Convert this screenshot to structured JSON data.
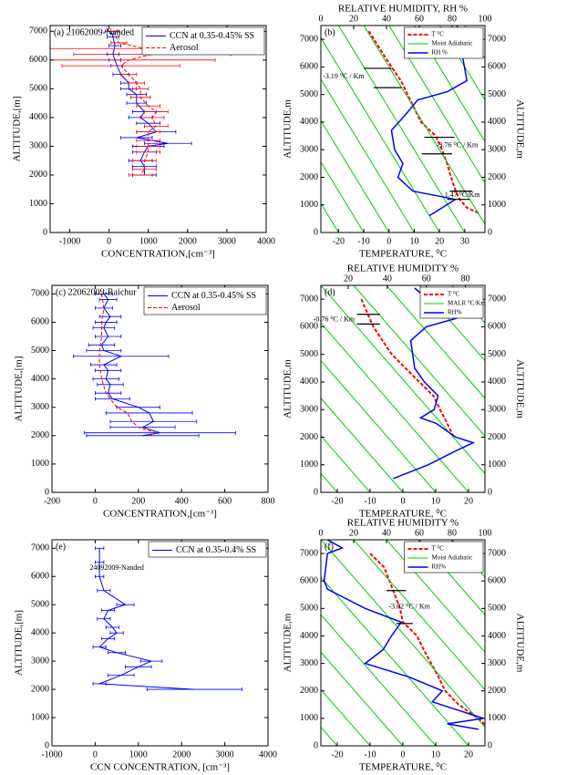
{
  "chart_data": [
    {
      "type": "line",
      "panel_label": "(a) 21062009-Nanded",
      "xlabel": "CONCENTRATION,[cm⁻³]",
      "ylabel": "ALTITUDE,[m]",
      "xlim": [
        -1500,
        4000
      ],
      "ylim": [
        0,
        7200
      ],
      "xticks": [
        -1000,
        0,
        1000,
        2000,
        3000,
        4000
      ],
      "yticks": [
        0,
        1000,
        2000,
        3000,
        4000,
        5000,
        6000,
        7000
      ],
      "legend": "upper right",
      "series": [
        {
          "name": "CCN at 0.35-0.45% SS",
          "color": "#0000ff",
          "linestyle": "solid",
          "values": [
            7000,
            6800,
            6500,
            6200,
            6000,
            5800,
            5500,
            5200,
            5000,
            4800,
            4500,
            4200,
            4000,
            3800,
            3500,
            3300,
            3100,
            3000,
            2800,
            2500,
            2300,
            2000
          ],
          "x": [
            50,
            100,
            150,
            100,
            150,
            200,
            300,
            500,
            500,
            700,
            700,
            900,
            800,
            1000,
            1200,
            700,
            1500,
            1000,
            900,
            800,
            900,
            900
          ],
          "errors": [
            150,
            150,
            150,
            150,
            150,
            150,
            200,
            200,
            200,
            250,
            250,
            300,
            300,
            300,
            500,
            400,
            600,
            400,
            300,
            300,
            300,
            300
          ]
        },
        {
          "name": "Aerosol",
          "color": "#ff0000",
          "linestyle": "dashed",
          "values": [
            7000,
            6600,
            6400,
            6200,
            6000,
            5800,
            5500,
            5200,
            5000,
            4700,
            4400,
            4200,
            4000,
            3700,
            3500,
            3200,
            3000,
            2800,
            2500,
            2200,
            2000
          ],
          "x": [
            100,
            250,
            900,
            1100,
            500,
            300,
            500,
            700,
            800,
            800,
            1000,
            1200,
            1100,
            1200,
            1000,
            1000,
            1000,
            1000,
            900,
            900,
            800
          ],
          "errors": [
            150,
            200,
            2400,
            2000,
            2200,
            1500,
            200,
            200,
            200,
            250,
            300,
            300,
            300,
            300,
            300,
            300,
            300,
            300,
            300,
            300,
            300
          ]
        }
      ],
      "annotations": [],
      "segments": []
    },
    {
      "type": "line",
      "panel_label": "(b)",
      "xlabel": "TEMPERATURE, ⁰C",
      "ylabel": "ALTITUDE,m",
      "y2label": "ALTITUDE,m",
      "x2label": "RELATIVE HUMIDITY, RH %",
      "xlim": [
        -27,
        38
      ],
      "ylim": [
        0,
        7500
      ],
      "xticks": [
        -20,
        -10,
        0,
        10,
        20,
        30
      ],
      "yticks": [
        0,
        1000,
        2000,
        3000,
        4000,
        5000,
        6000,
        7000
      ],
      "x2lim": [
        0,
        100
      ],
      "x2ticks": [
        0,
        20,
        40,
        60,
        80,
        100
      ],
      "y_right": true,
      "legend": "upper right",
      "series": [
        {
          "name": "T ⁰C",
          "color": "#ff0000",
          "linestyle": "dashed",
          "width": 2,
          "values": [
            7300,
            6500,
            6000,
            5500,
            4500,
            4000,
            3500,
            3000,
            2500,
            2000,
            1500,
            1200,
            900,
            700
          ],
          "x": [
            -8,
            -2.5,
            1,
            4.7,
            10,
            12.7,
            18.5,
            21,
            23,
            24.6,
            26.4,
            28,
            30.8,
            35.5
          ]
        },
        {
          "name": "Moist Adiabatic",
          "color": "#00cc00",
          "linestyle": "solid",
          "width": 1,
          "values": [
            0,
            7500,
            null,
            0,
            7500,
            null,
            0,
            7500,
            null,
            0,
            7500,
            null,
            0,
            7500,
            null,
            0,
            7500,
            null,
            0,
            7500,
            null,
            0,
            7500,
            null,
            0,
            7500,
            null,
            0,
            7500,
            null,
            0,
            7500
          ],
          "x": [
            -20,
            -70,
            null,
            -10,
            -60,
            null,
            0,
            -50,
            null,
            10,
            -40,
            null,
            20,
            -30,
            null,
            30,
            -20,
            null,
            40,
            -10,
            null,
            50,
            0,
            null,
            60,
            10,
            null,
            70,
            20,
            null,
            80,
            30
          ]
        },
        {
          "name": "RH %",
          "color": "#0000ff",
          "linestyle": "solid",
          "width": 1.5,
          "axis": "x2",
          "values": [
            7500,
            5500,
            5100,
            4800,
            4300,
            3700,
            3000,
            2500,
            2000,
            1500,
            1200,
            600
          ],
          "x": [
            83,
            89,
            77,
            59,
            52,
            43,
            45,
            50,
            47,
            56,
            82,
            66
          ]
        }
      ],
      "annotations": [
        {
          "text": "-3.19 ⁰C / Km",
          "x": -18,
          "y": 5650
        },
        {
          "text": "-3.76 ⁰C / Km",
          "x": 27,
          "y": 3150
        },
        {
          "text": "1.47 ⁰C/Km",
          "x": 29,
          "y": 1350
        }
      ],
      "segments": [
        {
          "x": [
            -10,
            1
          ],
          "y": 5950
        },
        {
          "x": [
            -6,
            5
          ],
          "y": 5250
        },
        {
          "x": [
            14,
            26
          ],
          "y": 3450
        },
        {
          "x": [
            13,
            25
          ],
          "y": 2850
        },
        {
          "x": [
            24,
            33
          ],
          "y": 1500
        },
        {
          "x": [
            23,
            32
          ],
          "y": 1200
        }
      ]
    },
    {
      "type": "line",
      "panel_label": "(c) 22062009-Raichur",
      "xlabel": "CONCENTRATION,[cm⁻³]",
      "ylabel": "ALTITUDE,[m]",
      "xlim": [
        -200,
        800
      ],
      "ylim": [
        0,
        7300
      ],
      "xticks": [
        -200,
        0,
        200,
        400,
        600,
        800
      ],
      "yticks": [
        0,
        1000,
        2000,
        3000,
        4000,
        5000,
        6000,
        7000
      ],
      "legend": "upper right",
      "series": [
        {
          "name": "CCN at 0.35-0.45% SS",
          "color": "#0000ff",
          "linestyle": "solid",
          "values": [
            7000,
            6800,
            6500,
            6200,
            6000,
            5800,
            5500,
            5200,
            5000,
            4800,
            4500,
            4300,
            4000,
            3800,
            3500,
            3300,
            3000,
            2800,
            2500,
            2300,
            2100,
            2000
          ],
          "x": [
            40,
            60,
            40,
            70,
            50,
            40,
            60,
            30,
            40,
            120,
            40,
            60,
            50,
            70,
            60,
            80,
            200,
            250,
            270,
            220,
            300,
            220
          ],
          "errors": [
            40,
            40,
            40,
            50,
            50,
            50,
            60,
            60,
            80,
            220,
            60,
            60,
            60,
            60,
            60,
            80,
            100,
            200,
            200,
            150,
            350,
            260
          ]
        },
        {
          "name": "Aerosol",
          "color": "#ff0000",
          "linestyle": "dashed",
          "values": [
            7000,
            6500,
            6000,
            5500,
            5000,
            4500,
            4000,
            3500,
            3000,
            2800,
            2500,
            2300,
            2100,
            2000
          ],
          "x": [
            30,
            40,
            30,
            30,
            20,
            20,
            30,
            50,
            100,
            150,
            170,
            200,
            280,
            250
          ]
        }
      ],
      "annotations": [],
      "segments": []
    },
    {
      "type": "line",
      "panel_label": "(d)",
      "xlabel": "TEMPERATURE, ⁰C",
      "ylabel": "ALTITUDE,m",
      "y2label": "ALTITUDE,m",
      "x2label": "RELATIVE HUMIDITY %",
      "xlim": [
        -25,
        25
      ],
      "ylim": [
        0,
        7500
      ],
      "xticks": [
        -20,
        -10,
        0,
        10,
        20
      ],
      "yticks": [
        0,
        1000,
        2000,
        3000,
        4000,
        5000,
        6000,
        7000
      ],
      "x2lim": [
        6,
        90
      ],
      "x2ticks": [
        20,
        40,
        60,
        80
      ],
      "y_right": true,
      "legend": "upper right",
      "series": [
        {
          "name": "T ⁰C",
          "color": "#ff0000",
          "linestyle": "dashed",
          "width": 2,
          "values": [
            7000,
            6000,
            5000,
            4000,
            3500,
            3000,
            2500,
            2000
          ],
          "x": [
            -12.7,
            -9,
            -3.4,
            5,
            9.3,
            11.3,
            13.5,
            15.5
          ]
        },
        {
          "name": "MALR ⁰C/Km",
          "color": "#00cc00",
          "linestyle": "solid",
          "width": 1,
          "values": [
            0,
            7500,
            null,
            0,
            7500,
            null,
            0,
            7500,
            null,
            0,
            7500,
            null,
            0,
            7500,
            null,
            0,
            7500,
            null,
            0,
            7500,
            null,
            0,
            7500,
            null,
            0,
            7500,
            null,
            0,
            7500
          ],
          "x": [
            -20,
            -75,
            null,
            -10,
            -65,
            null,
            0,
            -55,
            null,
            10,
            -45,
            null,
            20,
            -35,
            null,
            30,
            -25,
            null,
            40,
            -15,
            null,
            50,
            -5,
            null,
            60,
            5,
            null,
            70,
            15
          ]
        },
        {
          "name": "RH%",
          "color": "#0000ff",
          "linestyle": "solid",
          "width": 1.5,
          "axis": "x2",
          "values": [
            7400,
            6800,
            6300,
            6000,
            5500,
            4500,
            4000,
            3500,
            3000,
            2700,
            2500,
            2000,
            1800,
            1500,
            1000,
            500
          ],
          "x": [
            54,
            64,
            75,
            60,
            52,
            54,
            59,
            66,
            64,
            57,
            65,
            75,
            84,
            75,
            61,
            43
          ]
        }
      ],
      "annotations": [
        {
          "text": "-0.76 ⁰C / Km",
          "x": -21,
          "y": 6250
        }
      ],
      "segments": [
        {
          "x": [
            -14,
            -7
          ],
          "y": 6450
        },
        {
          "x": [
            -14,
            -7
          ],
          "y": 6100
        }
      ]
    },
    {
      "type": "line",
      "panel_label": "(e)",
      "xlabel": "CCN CONCENTRATION, [cm⁻³]",
      "ylabel": "ALTITUDE,[m]",
      "xlim": [
        -1000,
        4000
      ],
      "ylim": [
        0,
        7300
      ],
      "xticks": [
        -1000,
        0,
        1000,
        2000,
        3000,
        4000
      ],
      "yticks": [
        0,
        1000,
        2000,
        3000,
        4000,
        5000,
        6000,
        7000
      ],
      "legend": "upper right",
      "series": [
        {
          "name": "CCN at 0.35-0.4% SS",
          "color": "#0000ff",
          "linestyle": "solid",
          "values": [
            7000,
            6500,
            6000,
            5500,
            5000,
            4800,
            4500,
            4200,
            4000,
            3800,
            3500,
            3300,
            3000,
            2800,
            2500,
            2200,
            2000
          ],
          "x": [
            100,
            100,
            100,
            200,
            700,
            300,
            200,
            400,
            500,
            300,
            100,
            500,
            1300,
            1000,
            600,
            100,
            2300
          ],
          "errors": [
            100,
            100,
            100,
            150,
            200,
            150,
            150,
            150,
            150,
            150,
            150,
            200,
            250,
            300,
            300,
            150,
            1100
          ]
        }
      ],
      "annotations": [
        {
          "text": "24092009-Nanded",
          "x": 500,
          "y": 6300
        }
      ],
      "segments": []
    },
    {
      "type": "line",
      "panel_label": "(f)",
      "xlabel": "TEMPERATURE, ⁰C",
      "ylabel": "ALTITUDE,m",
      "y2label": "ALTITUDE,m",
      "x2label": "RELATIVE HUMIDITY %",
      "xlim": [
        -25,
        25
      ],
      "ylim": [
        0,
        7500
      ],
      "xticks": [
        -20,
        -10,
        0,
        10,
        20
      ],
      "yticks": [
        0,
        1000,
        2000,
        3000,
        4000,
        5000,
        6000,
        7000
      ],
      "x2lim": [
        0,
        100
      ],
      "x2ticks": [
        0,
        20,
        40,
        60,
        80,
        100
      ],
      "y_right": true,
      "legend": "upper right",
      "series": [
        {
          "name": "T ⁰C",
          "color": "#ff0000",
          "linestyle": "dashed",
          "width": 2,
          "values": [
            7000,
            6500,
            5000,
            4500,
            4000,
            3500,
            3000,
            2500,
            2000,
            1500,
            1000,
            700
          ],
          "x": [
            -10,
            -5.7,
            -0.9,
            0,
            4.3,
            6.3,
            8.6,
            10.9,
            12.9,
            17,
            22.9,
            25.7
          ]
        },
        {
          "name": "Moist Adiabatic",
          "color": "#00cc00",
          "linestyle": "solid",
          "width": 1,
          "values": [
            0,
            7500,
            null,
            0,
            7500,
            null,
            0,
            7500,
            null,
            0,
            7500,
            null,
            0,
            7500,
            null,
            0,
            7500,
            null,
            0,
            7500,
            null,
            0,
            7500,
            null,
            0,
            7500,
            null,
            0,
            7500
          ],
          "x": [
            -20,
            -75,
            null,
            -10,
            -65,
            null,
            0,
            -55,
            null,
            10,
            -45,
            null,
            20,
            -35,
            null,
            30,
            -25,
            null,
            40,
            -15,
            null,
            50,
            -5,
            null,
            60,
            5,
            null,
            70,
            15
          ]
        },
        {
          "name": "RH%",
          "color": "#0000ff",
          "linestyle": "solid",
          "width": 1.5,
          "axis": "x2",
          "values": [
            7500,
            7200,
            7000,
            6000,
            5700,
            5000,
            4500,
            4000,
            3500,
            3000,
            2500,
            2000,
            1600,
            1000,
            800,
            600
          ],
          "x": [
            4,
            13,
            4,
            2,
            4,
            27,
            49,
            43,
            38,
            27,
            54,
            74,
            68,
            99,
            77,
            96
          ]
        }
      ],
      "annotations": [
        {
          "text": "-3.02 ⁰C / Km",
          "x": 2,
          "y": 5050
        }
      ],
      "segments": [
        {
          "x": [
            -5,
            1
          ],
          "y": 5650
        },
        {
          "x": [
            -2,
            3
          ],
          "y": 4450
        }
      ]
    }
  ]
}
